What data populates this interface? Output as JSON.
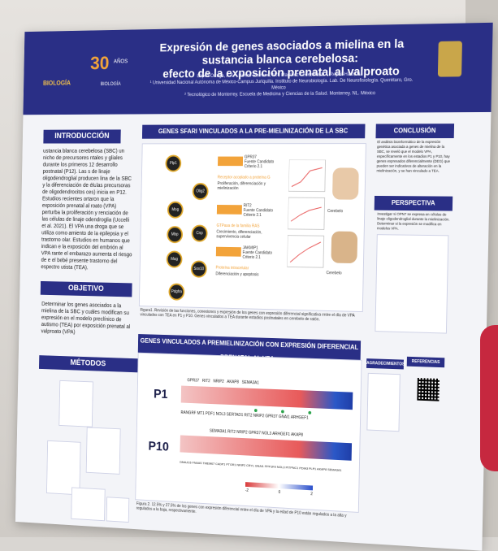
{
  "poster": {
    "title_line1": "Expresión de genes asociados a mielina en la sustancia blanca cerebelosa:",
    "title_line2": "efecto de la exposición prenatal al valproato",
    "authors": "López-Ortega, A.X.¹, Rivera-Romano, M.¹, Martínez-Ledesma, E.², Reyes-Haro, D.¹",
    "affiliation1": "¹ Universidad Nacional Autónoma de México-Campus Juriquilla. Instituto de Neurobiología. Lab. De Neurofisiología. Querétaro, Gro. México",
    "affiliation2": "² Tecnológico de Monterrey. Escuela de Medicina y Ciencias de la Salud. Monterrey. NL. México",
    "logo_number": "30",
    "logo_word": "AÑOS",
    "logo_left": "BIOLOGÍA",
    "logo_mid": "BIOLOGÍA"
  },
  "sections": {
    "introduccion": "INTRODUCCIÓN",
    "objetivo": "OBJETIVO",
    "metodos": "MÉTODOS",
    "sfari": "GENES SFARI VINCULADOS A LA PRE-MIELINIZACIÓN DE LA SBC",
    "valproato": "GENES VINCULADOS A PREMIELINIZACIÓN CON EXPRESIÓN DIFERENCIAL PRENATAL AL VPA",
    "conclusion": "CONCLUSIÓN",
    "perspectiva": "PERSPECTIVA",
    "agradecimientos": "AGRADECIMIENTOS",
    "referencias": "REFERENCIAS"
  },
  "text": {
    "intro": "ustancia blanca cerebelosa (SBC) un nicho de precursores ntales y gliales durante los primeros 12 desarrollo postnatal (P12). Las s de linaje oligodendroglial producen lina de la SBC y la diferenciación de élulas precursoras de oligodendrocitos ces) inicia en P12. Estudios recientes ortaron que la exposición prenatal al roato (VPA) perturba la proliferación y renciación de las células de linaje odendroglia (Uccelli et al. 2021). El VPA una droga que se utiliza como amiento de la epilepsia y el trastorno olar. Estudios en humanos que indican e la exposición del embrión al VPA rante el embarazo aumenta el riesgo de e el bebé presente trastorno del espectro utista (TEA).",
    "objetivo": "Determinar los genes asociados a la mielina de la SBC y cuáles modifican su expresión en el modelo preclínico de autismo (TEA) por exposición prenatal al valproato (VPA)",
    "fig1_caption": "Figura1. Revisión de las funciones, conexiones y expresión de los genes con expresión diferencial significativa entre el día de VPA vinculados con TEA en P1 y P10. Genes vinculados a TEA durante estadios postnatales en cerebelo de ratón.",
    "fig2_caption": "Figura 2. 12.5% y 27.5% de los genes con expresión diferencial entre el día de VPA y la edad de P10 están regulados a la alta y regulados a la baja, respectivamente.",
    "conclusion_txt": "El análisis bioinformático de la expresión genética asociada a genes de mielina de la SBC, se reveló que el modelo VPA, específicamente en los estadios P1 y P10, hay genes expresados diferencialmente (DEG) que pueden ser indicativos de alteración en la mielinización, y se han vinculado a TEA.",
    "perspectiva_txt": "Investigar si OPN7 se expresa en células de linaje oligodendroglial durante la mielinización. Determinar si la expresión se modifica en modelos VPA."
  },
  "sfari_panel": {
    "nodes": [
      "Plp1",
      "Mog",
      "Mbp",
      "Olig2",
      "Mag",
      "Cnp",
      "Sox10",
      "Pdgfra"
    ],
    "genes": [
      {
        "name": "GPR37",
        "source": "Fuente Candidato",
        "score": "Criterio 2.1",
        "role": "Receptor acoplado a proteína G"
      },
      {
        "name": "RIT2",
        "source": "Fuente Candidato",
        "score": "Criterio 2.1",
        "role": "GTPasa de la familia RAS"
      },
      {
        "name": "JAKMIP1",
        "source": "Fuente Candidato",
        "score": "Criterio 2.1",
        "role": "Proteína intracelular"
      }
    ],
    "roles": [
      "Proliferación, diferenciación y mielinización",
      "Crecimiento, diferenciación, supervivencia celular",
      "Diferenciación y apoptosis"
    ],
    "plot_labels": [
      "Cerebelo",
      "Cerebelo"
    ]
  },
  "fig2": {
    "row_p1": "P1",
    "row_p10": "P10",
    "p1_top": [
      "GPR37",
      "RIT2",
      "NRIP2",
      "AKAP8",
      "SEMA3A1"
    ],
    "p1_bottom": [
      "RANGRF",
      "MT1",
      "PDF1",
      "NOL3",
      "SERTAD1",
      "RIT2",
      "NRIP2",
      "GPR37",
      "GNAI1",
      "ARHGEF1"
    ],
    "p10_top": [
      "SEMA3A1",
      "RIT2",
      "NRIP2",
      "GPR37",
      "NOL3",
      "ARHGEF1",
      "AKAP8"
    ],
    "p10_bottom": [
      "DMAJC6",
      "FNAAS",
      "TMEM67",
      "CADP1",
      "PTGR1",
      "NRIP2",
      "CRYL",
      "GNAI1",
      "PPP1R4",
      "NOL3",
      "PITPNC1",
      "PDIA3",
      "PLP1",
      "AKAP8",
      "SEMA3A1"
    ],
    "legend": [
      "-2",
      "0",
      "2"
    ]
  },
  "colors": {
    "navy": "#2a2f86",
    "red": "#e85a5a",
    "blue": "#1f3ea8",
    "orange": "#f2a33a"
  }
}
